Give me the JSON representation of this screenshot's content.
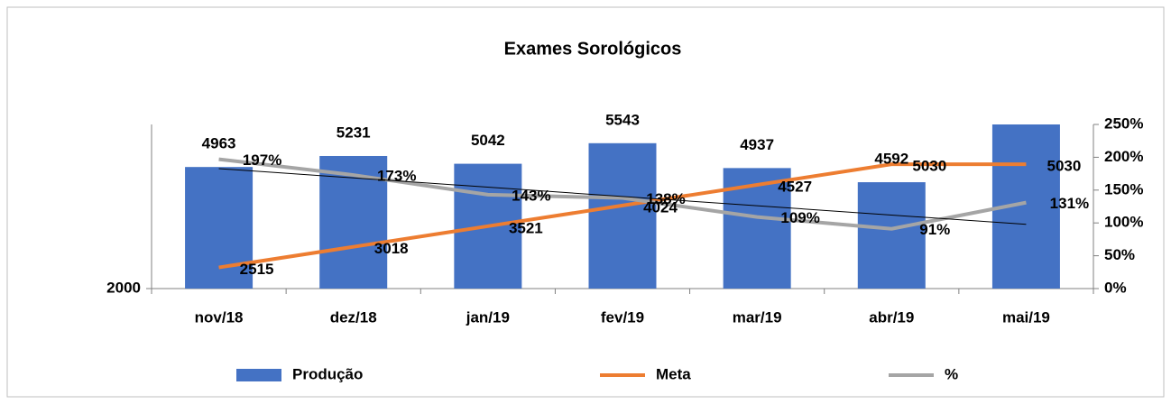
{
  "chart_data": {
    "type": "combo",
    "title": "Exames Sorológicos",
    "categories": [
      "nov/18",
      "dez/18",
      "jan/19",
      "fev/19",
      "mar/19",
      "abr/19",
      "mai/19"
    ],
    "ylim": [
      2000,
      6000
    ],
    "yticks": [
      2000
    ],
    "y2lim": [
      0,
      250
    ],
    "y2ticks": [
      {
        "value": 0,
        "label": "0%"
      },
      {
        "value": 50,
        "label": "50%"
      },
      {
        "value": 100,
        "label": "100%"
      },
      {
        "value": 150,
        "label": "150%"
      },
      {
        "value": 200,
        "label": "200%"
      },
      {
        "value": 250,
        "label": "250%"
      }
    ],
    "trendline": true,
    "series": [
      {
        "name": "Produção",
        "type": "bar",
        "color": "#4472c4",
        "values": [
          4963,
          5231,
          5042,
          5543,
          4937,
          4592,
          6000
        ],
        "value_labels": [
          "4963",
          "5231",
          "5042",
          "5543",
          "4937",
          "4592",
          null
        ]
      },
      {
        "name": "Meta",
        "type": "line",
        "color": "#ed7d31",
        "values": [
          2515,
          3018,
          3521,
          4024,
          4527,
          5030,
          5030
        ]
      },
      {
        "name": "%",
        "type": "line",
        "axis": "y2",
        "color": "#a5a5a5",
        "values": [
          197,
          173,
          143,
          138,
          109,
          91,
          131
        ],
        "value_labels": [
          "197%",
          "173%",
          "143%",
          "138%",
          "109%",
          "91%",
          "131%"
        ]
      }
    ]
  }
}
